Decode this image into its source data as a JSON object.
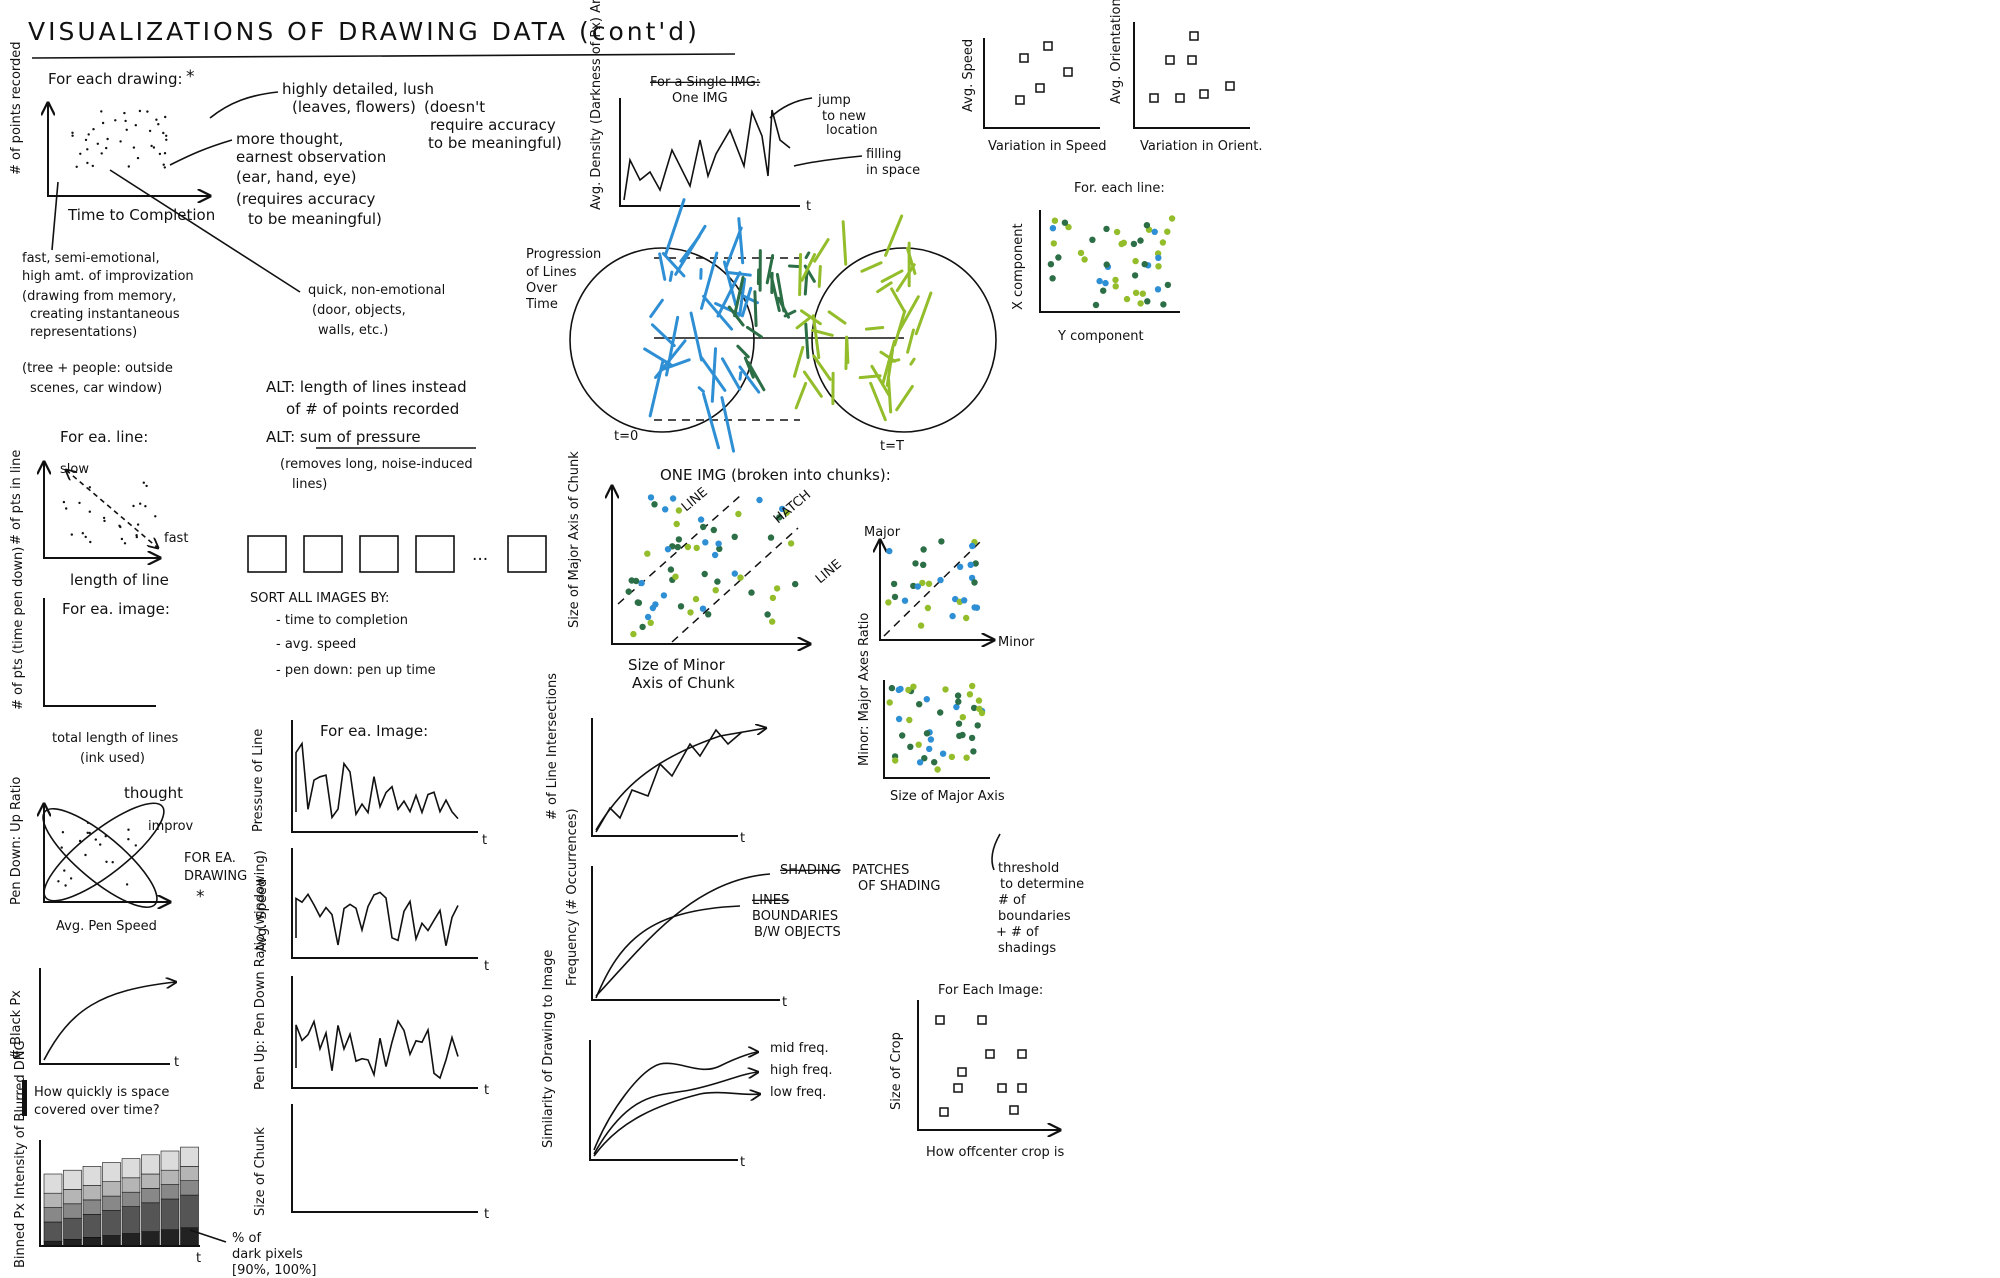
{
  "title": "VISUALIZATIONS OF DRAWING DATA (cont'd)",
  "colors": {
    "ink": "#111111",
    "blue": "#2f8fd4",
    "green": "#93bd2a",
    "dark_green": "#2c6e45"
  },
  "top_left": {
    "header": "For each drawing:",
    "star": "*",
    "ylabel": "# of points recorded",
    "xlabel": "Time to Completion",
    "note1": [
      "highly detailed, lush",
      "(leaves, flowers)"
    ],
    "note2": [
      "(doesn't",
      "require accuracy",
      "to be meaningful)"
    ],
    "note3": [
      "more thought,",
      "earnest observation",
      "(ear, hand, eye)",
      "(requires accuracy",
      "to be meaningful)"
    ],
    "note4": [
      "fast, semi-emotional,",
      "high amt. of improvization",
      "(drawing from memory,",
      "creating instantaneous",
      "representations)"
    ],
    "note5": [
      "(tree + people: outside",
      "scenes, car window)"
    ],
    "note6": [
      "quick, non-emotional",
      "(door, objects,",
      "walls, etc.)"
    ],
    "alt1": [
      "ALT: length of lines instead",
      "of # of points recorded"
    ],
    "alt2": [
      "ALT: sum of pressure",
      "(removes long, noise-induced",
      "lines)"
    ]
  },
  "line_chart": {
    "header": "For ea. line:",
    "ylabel": "# of pts in line",
    "xlabel": "length of line",
    "slow": "slow",
    "fast": "fast"
  },
  "image_chart": {
    "header": "For ea. image:",
    "ylabel": "# of pts (time pen down)",
    "xlabel": [
      "total length of lines",
      "(ink used)"
    ]
  },
  "ratio_chart": {
    "ylabel": "Pen Down: Up Ratio",
    "xlabel": "Avg. Pen Speed",
    "thought": "thought",
    "improv": "improv",
    "for_drawing": [
      "FOR EA.",
      "DRAWING",
      "*"
    ]
  },
  "black_chart": {
    "ylabel": "# Black Px",
    "t": "t",
    "caption": [
      "How quickly is space",
      "covered over time?"
    ]
  },
  "bar_chart": {
    "ylabel": "Binned Px Intensity of Blurred DNG",
    "t": "t",
    "note": [
      "% of",
      "dark pixels",
      "[90%, 100%]"
    ]
  },
  "sort_panel": {
    "ellipsis": "...",
    "header": "SORT ALL IMAGES BY:",
    "items": [
      "- time to completion",
      "- avg. speed",
      "- pen down: pen up time"
    ]
  },
  "image_series": {
    "header": "For ea. Image:",
    "labels": [
      "Pressure of Line",
      "Avg. Speed",
      "Pen Up: Pen Down Ratio (windowing)",
      "Size of Chunk"
    ],
    "t": "t"
  },
  "single_img": {
    "header_struck": "For a Single IMG:",
    "header": "One IMG",
    "ylabel": "Avg. Density (Darkness of Px) Around Pen Tip",
    "jump": [
      "jump",
      "to new",
      "location"
    ],
    "filling": [
      "filling",
      "in space"
    ],
    "t": "t"
  },
  "progression": {
    "label": [
      "Progression",
      "of Lines",
      "Over",
      "Time"
    ],
    "t0": "t=0",
    "tT": "t=T"
  },
  "chunk_scatter": {
    "header": "ONE IMG (broken into chunks):",
    "ylabel": "Size of Major Axis of Chunk",
    "xlabel": [
      "Size of Minor",
      "Axis of Chunk"
    ],
    "line1": "LINE",
    "hatch": "HATCH",
    "line2": "LINE"
  },
  "major_minor": {
    "ylabel": "Major",
    "xlabel": "Minor"
  },
  "ratio_scatter": {
    "ylabel": "Minor: Major Axes Ratio",
    "xlabel": "Size of Major Axis"
  },
  "intersections": {
    "ylabel": "# of Line Intersections",
    "t": "t"
  },
  "frequency": {
    "ylabel": "Frequency (# Occurrences)",
    "shading_struck": "SHADING",
    "patches": [
      "PATCHES",
      "OF SHADING"
    ],
    "lines_struck": "LINES",
    "boundaries": [
      "BOUNDARIES",
      "B/W OBJECTS"
    ],
    "t": "t",
    "threshold": [
      "threshold",
      "to determine",
      "# of",
      "boundaries",
      "+ # of",
      "shadings"
    ]
  },
  "similarity": {
    "ylabel": "Similarity of Drawing to Image",
    "mid": "mid freq.",
    "high": "high freq.",
    "low": "low freq.",
    "t": "t"
  },
  "speed_chart": {
    "ylabel": "Avg. Speed",
    "xlabel": "Variation in Speed"
  },
  "orient_chart": {
    "ylabel": "Avg. Orientation",
    "xlabel": "Variation in Orient."
  },
  "xy_scatter": {
    "header": "For. each line:",
    "ylabel": "X component",
    "xlabel": "Y component"
  },
  "crop_chart": {
    "header": "For Each Image:",
    "ylabel": "Size of Crop",
    "xlabel": "How offcenter crop is"
  }
}
